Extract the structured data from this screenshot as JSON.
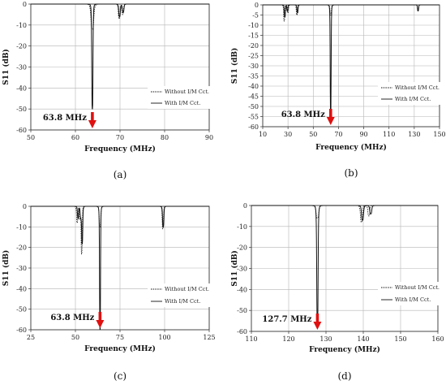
{
  "chart_data": [
    {
      "type": "line",
      "panel_label": "(a)",
      "xlabel": "Frequency   (MHz)",
      "ylabel": "S11   (dB)",
      "xlim": [
        50,
        90
      ],
      "ylim": [
        -60,
        0
      ],
      "xticks": [
        "50",
        "60",
        "70",
        "80",
        "90"
      ],
      "yticks": [
        "0",
        "-10",
        "-20",
        "-30",
        "-40",
        "-50",
        "-60"
      ],
      "series": [
        {
          "name": "Without I/M Cct.",
          "style": "dotted",
          "dips": [
            {
              "f": 63.8,
              "depth": -12,
              "w": 0.35
            },
            {
              "f": 69.8,
              "depth": -7,
              "w": 0.2
            },
            {
              "f": 70.6,
              "depth": -5,
              "w": 0.2
            }
          ]
        },
        {
          "name": "With I/M Cct.",
          "style": "solid",
          "dips": [
            {
              "f": 63.8,
              "depth": -50,
              "w": 0.15
            },
            {
              "f": 69.9,
              "depth": -6,
              "w": 0.2
            },
            {
              "f": 70.7,
              "depth": -4,
              "w": 0.2
            }
          ]
        }
      ],
      "annotation": {
        "text": "63.8 MHz",
        "x": 63.8
      }
    },
    {
      "type": "line",
      "panel_label": "(b)",
      "xlabel": "Frequency   (MHz)",
      "ylabel": "S11   (dB)",
      "xlim": [
        10,
        150
      ],
      "ylim": [
        -60,
        0
      ],
      "xticks": [
        "10",
        "30",
        "50",
        "70",
        "90",
        "110",
        "130",
        "150"
      ],
      "yticks": [
        "0",
        "-5",
        "-10",
        "-15",
        "-20",
        "-25",
        "-30",
        "-35",
        "-40",
        "-45",
        "-50",
        "-55",
        "-60"
      ],
      "series": [
        {
          "name": "Without I/M Cct.",
          "style": "dotted",
          "dips": [
            {
              "f": 27,
              "depth": -8,
              "w": 0.5
            },
            {
              "f": 30,
              "depth": -4,
              "w": 0.5
            },
            {
              "f": 37,
              "depth": -5,
              "w": 0.5
            },
            {
              "f": 63.8,
              "depth": -5,
              "w": 0.6
            },
            {
              "f": 133,
              "depth": -2,
              "w": 0.5
            }
          ]
        },
        {
          "name": "With I/M Cct.",
          "style": "solid",
          "dips": [
            {
              "f": 27.5,
              "depth": -6,
              "w": 0.5
            },
            {
              "f": 29.5,
              "depth": -3,
              "w": 0.5
            },
            {
              "f": 37.5,
              "depth": -4,
              "w": 0.5
            },
            {
              "f": 63.8,
              "depth": -55,
              "w": 0.4
            },
            {
              "f": 133,
              "depth": -3,
              "w": 0.5
            }
          ]
        }
      ],
      "annotation": {
        "text": "63.8 MHz",
        "x": 63.8
      }
    },
    {
      "type": "line",
      "panel_label": "(c)",
      "xlabel": "Frequency   (MHz)",
      "ylabel": "S11   (dB)",
      "xlim": [
        25,
        125
      ],
      "ylim": [
        -60,
        0
      ],
      "xticks": [
        "25",
        "50",
        "75",
        "100",
        "125"
      ],
      "yticks": [
        "0",
        "-10",
        "-20",
        "-30",
        "-40",
        "-50",
        "-60"
      ],
      "series": [
        {
          "name": "Without I/M Cct.",
          "style": "dotted",
          "dips": [
            {
              "f": 51,
              "depth": -8,
              "w": 0.4
            },
            {
              "f": 52.5,
              "depth": -6,
              "w": 0.4
            },
            {
              "f": 53.5,
              "depth": -23,
              "w": 0.35
            },
            {
              "f": 63.8,
              "depth": -10,
              "w": 0.5
            },
            {
              "f": 99,
              "depth": -11,
              "w": 0.4
            }
          ]
        },
        {
          "name": "With I/M Cct.",
          "style": "solid",
          "dips": [
            {
              "f": 51.5,
              "depth": -6,
              "w": 0.4
            },
            {
              "f": 53,
              "depth": -5,
              "w": 0.4
            },
            {
              "f": 53.8,
              "depth": -18,
              "w": 0.35
            },
            {
              "f": 63.8,
              "depth": -60,
              "w": 0.3
            },
            {
              "f": 99.2,
              "depth": -10,
              "w": 0.4
            }
          ]
        }
      ],
      "annotation": {
        "text": "63.8 MHz",
        "x": 63.8
      }
    },
    {
      "type": "line",
      "panel_label": "(d)",
      "xlabel": "Frequency   (MHz)",
      "ylabel": "S11   (dB)",
      "xlim": [
        110,
        160
      ],
      "ylim": [
        -60,
        0
      ],
      "xticks": [
        "110",
        "120",
        "130",
        "140",
        "150",
        "160"
      ],
      "yticks": [
        "0",
        "-10",
        "-20",
        "-30",
        "-40",
        "-50",
        "-60"
      ],
      "series": [
        {
          "name": "Without I/M Cct.",
          "style": "dotted",
          "dips": [
            {
              "f": 127.7,
              "depth": -6,
              "w": 0.4
            },
            {
              "f": 139.5,
              "depth": -8,
              "w": 0.3
            },
            {
              "f": 141.5,
              "depth": -5,
              "w": 0.3
            }
          ]
        },
        {
          "name": "With I/M Cct.",
          "style": "solid",
          "dips": [
            {
              "f": 127.7,
              "depth": -58,
              "w": 0.2
            },
            {
              "f": 139.8,
              "depth": -7,
              "w": 0.3
            },
            {
              "f": 142,
              "depth": -4,
              "w": 0.3
            }
          ]
        }
      ],
      "annotation": {
        "text": "127.7 MHz",
        "x": 127.7
      }
    }
  ],
  "colors": {
    "line": "#111111",
    "axis": "#333333",
    "grid": "#b5b5b5",
    "arrow": "#e01010"
  }
}
